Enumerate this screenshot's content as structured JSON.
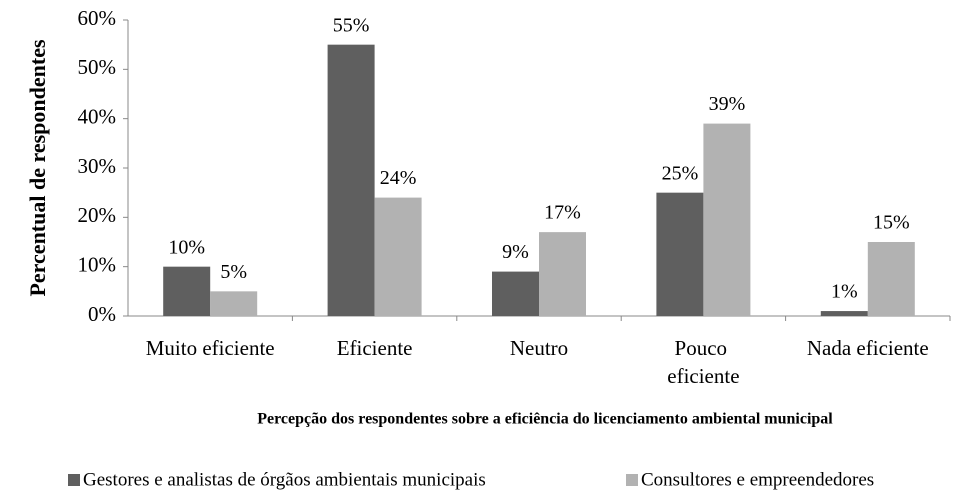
{
  "chart_data": {
    "type": "bar",
    "ylabel": "Percentual de respondentes",
    "xlabel": "Percepção dos respondentes sobre a eficiência do licenciamento ambiental municipal",
    "categories": [
      "Muito eficiente",
      "Eficiente",
      "Neutro",
      "Pouco eficiente",
      "Nada eficiente"
    ],
    "series": [
      {
        "name": "Gestores e analistas de órgãos ambientais municipais",
        "color": "#5f5f5f",
        "values": [
          10,
          55,
          9,
          25,
          1
        ],
        "value_labels": [
          "10%",
          "55%",
          "9%",
          "25%",
          "1%"
        ]
      },
      {
        "name": "Consultores e empreendedores",
        "color": "#b2b2b2",
        "values": [
          5,
          24,
          17,
          39,
          15
        ],
        "value_labels": [
          "5%",
          "24%",
          "17%",
          "39%",
          "15%"
        ]
      }
    ],
    "ylim": [
      0,
      60
    ],
    "yticks": [
      {
        "value": 0,
        "label": "0%"
      },
      {
        "value": 10,
        "label": "10%"
      },
      {
        "value": 20,
        "label": "20%"
      },
      {
        "value": 30,
        "label": "30%"
      },
      {
        "value": 40,
        "label": "40%"
      },
      {
        "value": 50,
        "label": "50%"
      },
      {
        "value": 60,
        "label": "60%"
      }
    ],
    "legend": "bottom"
  }
}
